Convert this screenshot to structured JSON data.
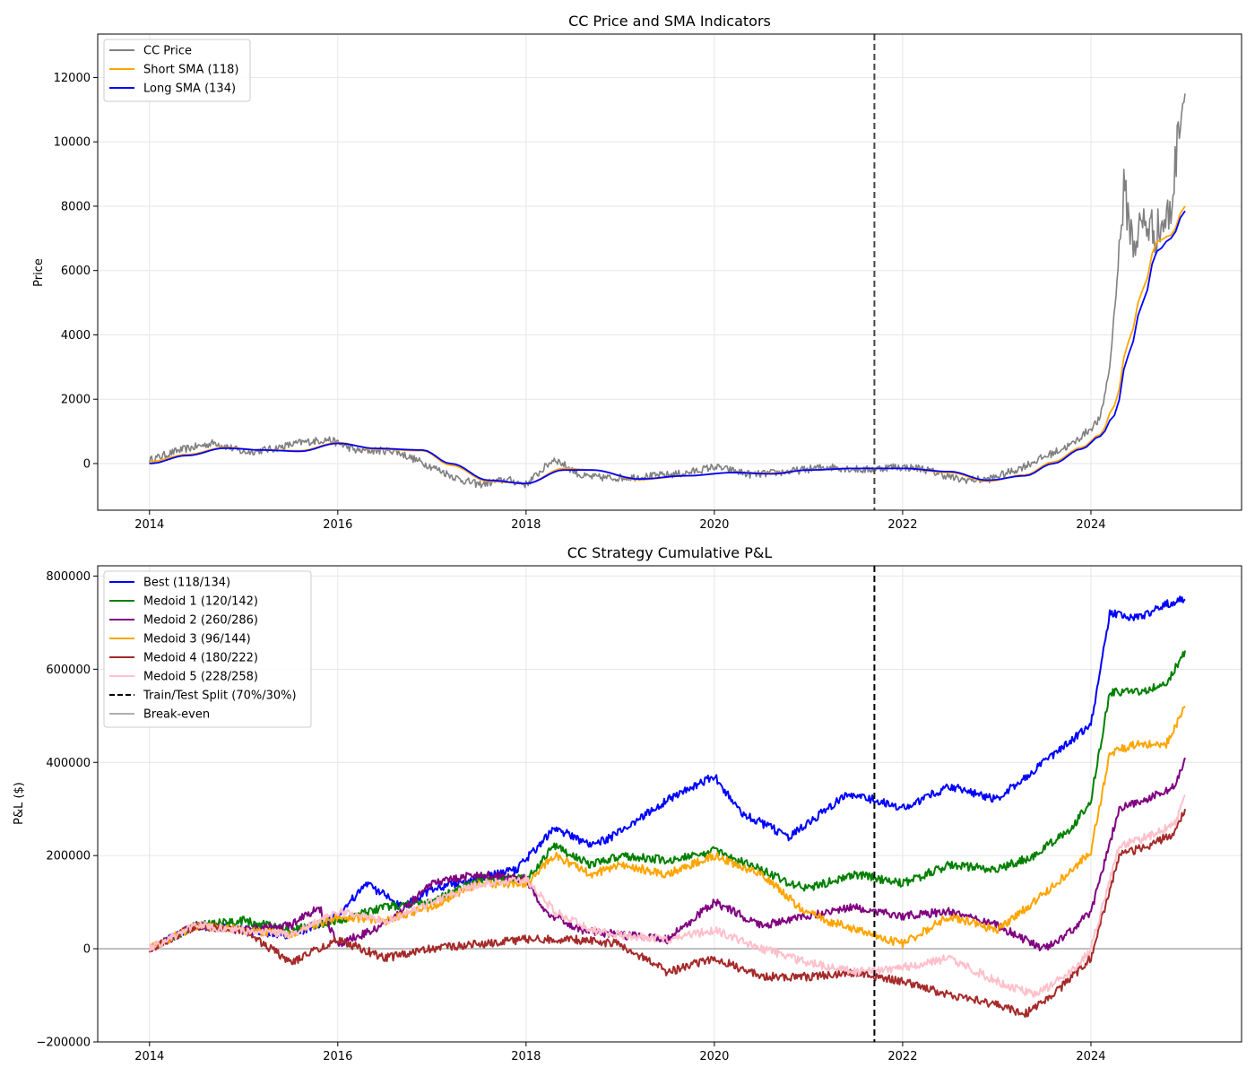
{
  "chart_data": [
    {
      "type": "line",
      "title": "CC Price and SMA Indicators",
      "xlabel": "",
      "ylabel": "Price",
      "xlim": [
        2013.45,
        2025.6
      ],
      "ylim": [
        -1450,
        13350
      ],
      "x_ticks": [
        2014,
        2016,
        2018,
        2020,
        2022,
        2024
      ],
      "y_ticks": [
        0,
        2000,
        4000,
        6000,
        8000,
        10000,
        12000
      ],
      "grid": true,
      "legend_position": "upper-left",
      "split_line": {
        "x": 2021.7,
        "style": "dashed",
        "color": "#444444"
      },
      "series": [
        {
          "name": "CC Price",
          "color": "#808080",
          "width": 1.6,
          "noise": 120,
          "x": [
            2014.0,
            2014.3,
            2014.7,
            2015.0,
            2015.3,
            2015.6,
            2015.9,
            2016.2,
            2016.6,
            2017.0,
            2017.3,
            2017.5,
            2017.8,
            2018.0,
            2018.3,
            2018.6,
            2018.9,
            2019.3,
            2019.7,
            2020.0,
            2020.4,
            2020.8,
            2021.2,
            2021.6,
            2021.9,
            2022.2,
            2022.6,
            2022.9,
            2023.2,
            2023.5,
            2023.8,
            2024.0,
            2024.1,
            2024.2,
            2024.3,
            2024.35,
            2024.45,
            2024.55,
            2024.7,
            2024.85,
            2024.95,
            2025.0
          ],
          "y": [
            100,
            400,
            650,
            350,
            450,
            650,
            750,
            400,
            400,
            -100,
            -500,
            -650,
            -500,
            -650,
            150,
            -400,
            -450,
            -400,
            -300,
            -100,
            -350,
            -250,
            -100,
            -200,
            -100,
            -150,
            -500,
            -500,
            -200,
            200,
            600,
            1100,
            1400,
            3000,
            6500,
            8500,
            6800,
            7500,
            7200,
            7800,
            11000,
            11500
          ]
        },
        {
          "name": "Short SMA (118)",
          "color": "#ffa500",
          "width": 1.8,
          "noise": 0,
          "x": [
            2014.0,
            2014.4,
            2014.8,
            2015.2,
            2015.6,
            2016.0,
            2016.4,
            2016.9,
            2017.2,
            2017.6,
            2018.0,
            2018.4,
            2018.7,
            2019.2,
            2019.7,
            2020.2,
            2020.6,
            2021.0,
            2021.5,
            2022.0,
            2022.5,
            2022.9,
            2023.3,
            2023.6,
            2023.9,
            2024.1,
            2024.25,
            2024.4,
            2024.55,
            2024.7,
            2024.85,
            2025.0
          ],
          "y": [
            60,
            280,
            500,
            420,
            400,
            650,
            450,
            400,
            -50,
            -550,
            -620,
            -150,
            -200,
            -500,
            -380,
            -280,
            -300,
            -200,
            -150,
            -150,
            -280,
            -550,
            -350,
            50,
            500,
            900,
            1800,
            3800,
            5400,
            6900,
            7100,
            8000
          ]
        },
        {
          "name": "Long SMA (134)",
          "color": "#0000ff",
          "width": 1.8,
          "noise": 0,
          "x": [
            2014.0,
            2014.4,
            2014.8,
            2015.2,
            2015.6,
            2016.0,
            2016.4,
            2016.9,
            2017.2,
            2017.6,
            2018.0,
            2018.4,
            2018.7,
            2019.2,
            2019.7,
            2020.2,
            2020.6,
            2021.0,
            2021.5,
            2022.0,
            2022.5,
            2022.9,
            2023.3,
            2023.6,
            2023.9,
            2024.1,
            2024.25,
            2024.4,
            2024.55,
            2024.7,
            2024.85,
            2025.0
          ],
          "y": [
            0,
            250,
            480,
            420,
            380,
            630,
            470,
            420,
            0,
            -520,
            -620,
            -200,
            -200,
            -480,
            -380,
            -280,
            -320,
            -200,
            -150,
            -150,
            -250,
            -520,
            -380,
            0,
            450,
            850,
            1500,
            3400,
            5000,
            6600,
            7000,
            7850
          ]
        }
      ]
    },
    {
      "type": "line",
      "title": "CC Strategy Cumulative P&L",
      "xlabel": "",
      "ylabel": "P&L ($)",
      "xlim": [
        2013.45,
        2025.6
      ],
      "ylim": [
        -200000,
        822000
      ],
      "x_ticks": [
        2014,
        2016,
        2018,
        2020,
        2022,
        2024
      ],
      "y_ticks": [
        -200000,
        0,
        200000,
        400000,
        600000,
        800000
      ],
      "grid": true,
      "legend_position": "upper-left",
      "split_line": {
        "x": 2021.7,
        "style": "dashed",
        "color": "#000000"
      },
      "breakeven": {
        "y": 0,
        "color": "#b0b0b0"
      },
      "series": [
        {
          "name": "Best (118/134)",
          "color": "#0000ff",
          "width": 2,
          "noise": 9000,
          "x": [
            2014.0,
            2014.5,
            2015.0,
            2015.5,
            2016.0,
            2016.3,
            2016.7,
            2017.0,
            2017.5,
            2017.9,
            2018.3,
            2018.7,
            2019.0,
            2019.5,
            2020.0,
            2020.3,
            2020.8,
            2021.0,
            2021.4,
            2021.7,
            2022.0,
            2022.5,
            2023.0,
            2023.5,
            2024.0,
            2024.2,
            2024.5,
            2024.8,
            2025.0
          ],
          "y": [
            0,
            50000,
            40000,
            30000,
            70000,
            140000,
            90000,
            130000,
            150000,
            170000,
            260000,
            220000,
            250000,
            320000,
            370000,
            290000,
            240000,
            270000,
            330000,
            320000,
            300000,
            350000,
            320000,
            400000,
            480000,
            720000,
            710000,
            740000,
            750000
          ]
        },
        {
          "name": "Medoid 1 (120/142)",
          "color": "#008000",
          "width": 2,
          "noise": 9000,
          "x": [
            2014.0,
            2014.5,
            2015.0,
            2015.5,
            2016.0,
            2016.5,
            2017.0,
            2017.5,
            2018.0,
            2018.3,
            2018.7,
            2019.0,
            2019.5,
            2020.0,
            2020.5,
            2020.8,
            2021.0,
            2021.5,
            2022.0,
            2022.5,
            2023.0,
            2023.4,
            2023.8,
            2024.0,
            2024.2,
            2024.5,
            2024.8,
            2025.0
          ],
          "y": [
            0,
            50000,
            60000,
            40000,
            60000,
            90000,
            100000,
            150000,
            150000,
            220000,
            180000,
            200000,
            190000,
            210000,
            170000,
            140000,
            130000,
            160000,
            140000,
            180000,
            170000,
            200000,
            260000,
            320000,
            550000,
            550000,
            570000,
            640000
          ]
        },
        {
          "name": "Medoid 2 (260/286)",
          "color": "#800080",
          "width": 2,
          "noise": 9000,
          "x": [
            2014.0,
            2014.5,
            2015.0,
            2015.5,
            2015.8,
            2016.0,
            2016.5,
            2017.0,
            2017.5,
            2018.0,
            2018.2,
            2018.6,
            2019.0,
            2019.5,
            2020.0,
            2020.5,
            2021.0,
            2021.5,
            2022.0,
            2022.5,
            2023.0,
            2023.5,
            2023.8,
            2024.0,
            2024.3,
            2024.6,
            2024.9,
            2025.0
          ],
          "y": [
            0,
            50000,
            40000,
            50000,
            90000,
            10000,
            50000,
            140000,
            160000,
            150000,
            80000,
            40000,
            30000,
            20000,
            100000,
            50000,
            70000,
            90000,
            70000,
            80000,
            50000,
            0,
            40000,
            80000,
            300000,
            320000,
            350000,
            410000
          ]
        },
        {
          "name": "Medoid 3 (96/144)",
          "color": "#ffa500",
          "width": 2,
          "noise": 9000,
          "x": [
            2014.0,
            2014.5,
            2015.0,
            2015.5,
            2016.0,
            2016.5,
            2017.0,
            2017.5,
            2018.0,
            2018.3,
            2018.7,
            2019.0,
            2019.5,
            2020.0,
            2020.5,
            2020.9,
            2021.2,
            2021.7,
            2022.0,
            2022.5,
            2023.0,
            2023.4,
            2023.8,
            2024.0,
            2024.2,
            2024.5,
            2024.8,
            2025.0
          ],
          "y": [
            0,
            50000,
            40000,
            30000,
            70000,
            60000,
            90000,
            140000,
            140000,
            200000,
            160000,
            180000,
            160000,
            200000,
            160000,
            90000,
            60000,
            30000,
            10000,
            70000,
            40000,
            100000,
            170000,
            210000,
            420000,
            440000,
            440000,
            520000
          ]
        },
        {
          "name": "Medoid 4 (180/222)",
          "color": "#a52a2a",
          "width": 2,
          "noise": 9000,
          "x": [
            2014.0,
            2014.5,
            2015.0,
            2015.5,
            2016.0,
            2016.5,
            2017.0,
            2017.5,
            2018.0,
            2018.5,
            2019.0,
            2019.5,
            2020.0,
            2020.5,
            2021.0,
            2021.5,
            2022.0,
            2022.5,
            2023.0,
            2023.3,
            2023.7,
            2024.0,
            2024.3,
            2024.6,
            2024.9,
            2025.0
          ],
          "y": [
            0,
            50000,
            40000,
            -30000,
            20000,
            -20000,
            0,
            10000,
            20000,
            20000,
            10000,
            -50000,
            -20000,
            -60000,
            -60000,
            -50000,
            -70000,
            -100000,
            -120000,
            -140000,
            -80000,
            -20000,
            200000,
            220000,
            250000,
            300000
          ]
        },
        {
          "name": "Medoid 5 (228/258)",
          "color": "#ffc0cb",
          "width": 2,
          "noise": 9000,
          "x": [
            2014.0,
            2014.5,
            2015.0,
            2015.5,
            2016.0,
            2016.5,
            2017.0,
            2017.5,
            2018.0,
            2018.3,
            2018.7,
            2019.0,
            2019.5,
            2020.0,
            2020.5,
            2021.0,
            2021.5,
            2022.0,
            2022.5,
            2023.0,
            2023.4,
            2023.8,
            2024.0,
            2024.3,
            2024.6,
            2024.9,
            2025.0
          ],
          "y": [
            0,
            50000,
            40000,
            30000,
            80000,
            60000,
            100000,
            140000,
            150000,
            80000,
            40000,
            30000,
            20000,
            40000,
            0,
            -30000,
            -50000,
            -40000,
            -20000,
            -70000,
            -100000,
            -50000,
            0,
            220000,
            240000,
            270000,
            330000
          ]
        }
      ],
      "legend_extra": [
        {
          "name": "Train/Test Split (70%/30%)",
          "color": "#000000",
          "style": "dashed"
        },
        {
          "name": "Break-even",
          "color": "#b0b0b0",
          "style": "solid"
        }
      ]
    }
  ]
}
